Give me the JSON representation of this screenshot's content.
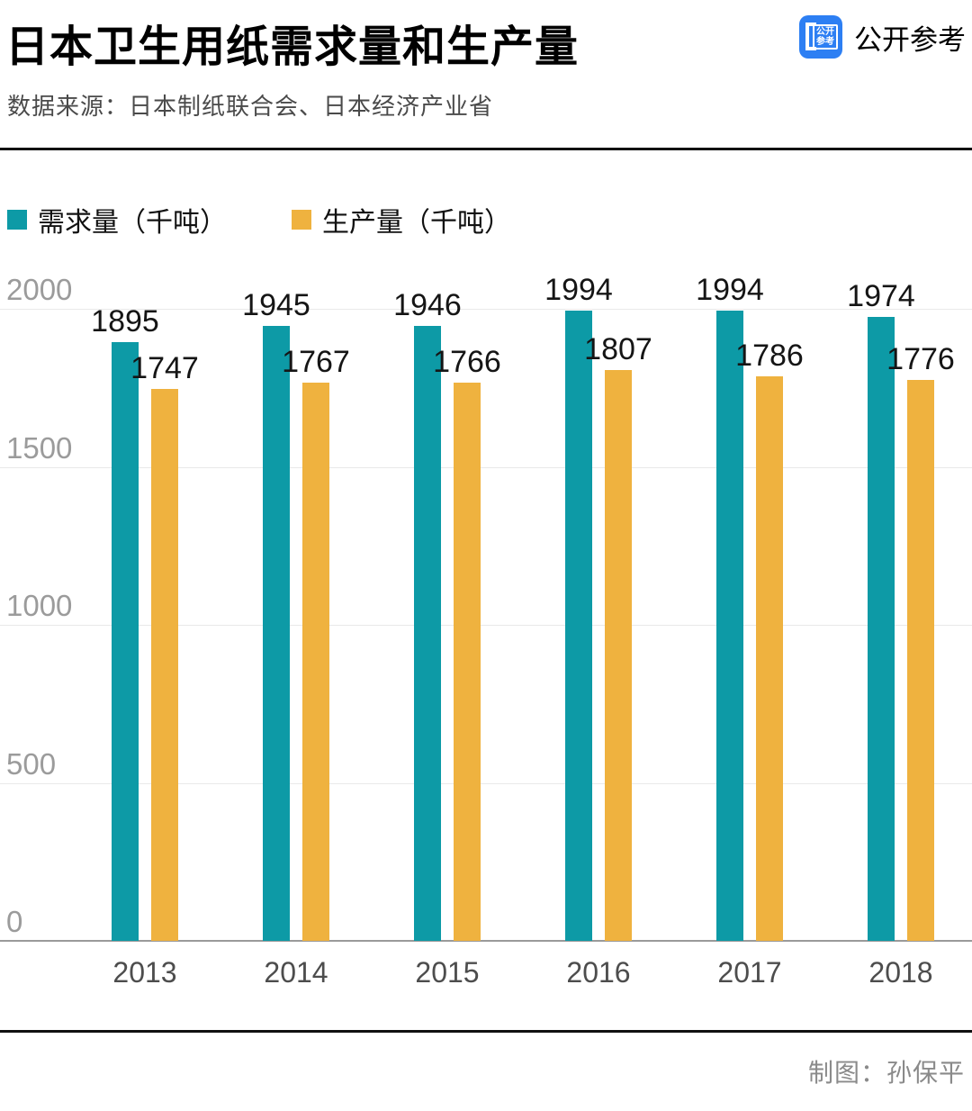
{
  "header": {
    "title": "日本卫生用纸需求量和生产量",
    "source": "数据来源：日本制纸联合会、日本经济产业省",
    "brand": "公开参考",
    "logo_line1": "公开",
    "logo_line2": "参考"
  },
  "footer": {
    "credit": "制图：孙保平"
  },
  "colors": {
    "demand_teal": "#0D9AA6",
    "production_yellow": "#EFB23F",
    "brand_blue": "#2D7FF3"
  },
  "chart_data": {
    "type": "bar",
    "title": "日本卫生用纸需求量和生产量",
    "categories": [
      "2013",
      "2014",
      "2015",
      "2016",
      "2017",
      "2018"
    ],
    "series": [
      {
        "name": "需求量（千吨）",
        "key": "demand",
        "color": "#0D9AA6",
        "values": [
          1895,
          1945,
          1946,
          1994,
          1994,
          1974
        ]
      },
      {
        "name": "生产量（千吨）",
        "key": "production",
        "color": "#EFB23F",
        "values": [
          1747,
          1767,
          1766,
          1807,
          1786,
          1776
        ]
      }
    ],
    "xlabel": "",
    "ylabel": "",
    "ylim": [
      0,
      2000
    ],
    "yticks": [
      0,
      500,
      1000,
      1500,
      2000
    ],
    "grid": true,
    "legend_position": "top-left",
    "value_labels": true
  }
}
